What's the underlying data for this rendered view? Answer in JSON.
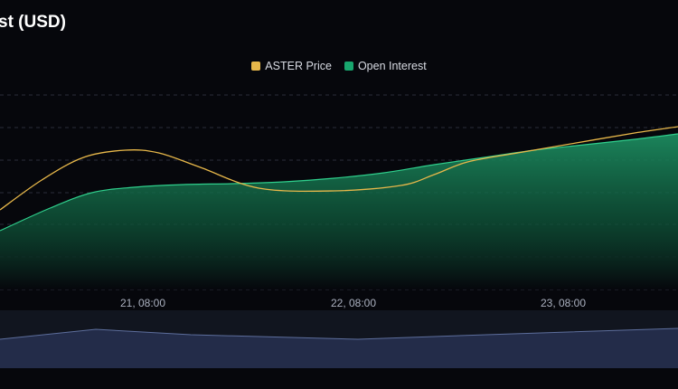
{
  "chart_data": {
    "type": "area",
    "title": "st (USD)",
    "legend_position": "top-center",
    "grid": true,
    "x_ticks": [
      "21, 08:00",
      "22, 08:00",
      "23, 08:00"
    ],
    "series": [
      {
        "name": "ASTER Price",
        "kind": "line",
        "color": "#e8b84a",
        "points": [
          [
            0,
            232
          ],
          [
            25,
            199
          ],
          [
            50,
            174
          ],
          [
            75,
            166
          ],
          [
            95,
            169
          ],
          [
            120,
            185
          ],
          [
            155,
            208
          ],
          [
            200,
            211
          ],
          [
            240,
            205
          ],
          [
            260,
            193
          ],
          [
            280,
            179
          ],
          [
            310,
            169
          ],
          [
            345,
            158
          ],
          [
            380,
            147
          ],
          [
            406,
            140
          ]
        ]
      },
      {
        "name": "Open Interest",
        "kind": "area",
        "color": "#18a66e",
        "points": [
          [
            0,
            255
          ],
          [
            30,
            230
          ],
          [
            55,
            213
          ],
          [
            80,
            207
          ],
          [
            110,
            204
          ],
          [
            140,
            203
          ],
          [
            170,
            201
          ],
          [
            200,
            197
          ],
          [
            230,
            191
          ],
          [
            260,
            182
          ],
          [
            290,
            174
          ],
          [
            320,
            166
          ],
          [
            350,
            160
          ],
          [
            380,
            154
          ],
          [
            406,
            148
          ]
        ]
      }
    ],
    "navigator": {
      "series": "Open Interest",
      "points": [
        [
          0,
          375
        ],
        [
          106,
          364
        ],
        [
          211,
          370
        ],
        [
          396,
          375
        ],
        [
          538,
          370
        ],
        [
          750,
          363
        ]
      ]
    }
  }
}
